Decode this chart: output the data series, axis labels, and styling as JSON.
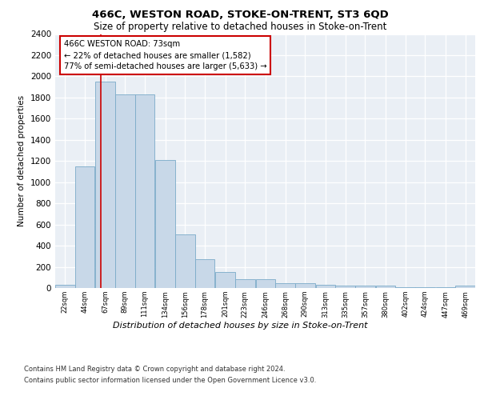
{
  "title1": "466C, WESTON ROAD, STOKE-ON-TRENT, ST3 6QD",
  "title2": "Size of property relative to detached houses in Stoke-on-Trent",
  "xlabel": "Distribution of detached houses by size in Stoke-on-Trent",
  "ylabel": "Number of detached properties",
  "bin_labels": [
    "22sqm",
    "44sqm",
    "67sqm",
    "89sqm",
    "111sqm",
    "134sqm",
    "156sqm",
    "178sqm",
    "201sqm",
    "223sqm",
    "246sqm",
    "268sqm",
    "290sqm",
    "313sqm",
    "335sqm",
    "357sqm",
    "380sqm",
    "402sqm",
    "424sqm",
    "447sqm",
    "469sqm"
  ],
  "bar_heights": [
    30,
    1150,
    1950,
    1830,
    1830,
    1210,
    510,
    270,
    150,
    85,
    85,
    48,
    48,
    30,
    20,
    20,
    20,
    8,
    8,
    5,
    20
  ],
  "bar_color": "#c8d8e8",
  "bar_edge_color": "#7aaac8",
  "property_line_x": 73,
  "property_line_label": "466C WESTON ROAD: 73sqm",
  "annotation_line1": "← 22% of detached houses are smaller (1,582)",
  "annotation_line2": "77% of semi-detached houses are larger (5,633) →",
  "annotation_box_color": "#ffffff",
  "annotation_box_edge": "#cc0000",
  "line_color": "#cc0000",
  "ylim": [
    0,
    2400
  ],
  "yticks": [
    0,
    200,
    400,
    600,
    800,
    1000,
    1200,
    1400,
    1600,
    1800,
    2000,
    2200,
    2400
  ],
  "background_color": "#eaeff5",
  "footer_line1": "Contains HM Land Registry data © Crown copyright and database right 2024.",
  "footer_line2": "Contains public sector information licensed under the Open Government Licence v3.0.",
  "bin_starts": [
    22,
    44,
    67,
    89,
    111,
    134,
    156,
    178,
    201,
    223,
    246,
    268,
    290,
    313,
    335,
    357,
    380,
    402,
    424,
    447,
    469
  ],
  "bin_width": 22
}
